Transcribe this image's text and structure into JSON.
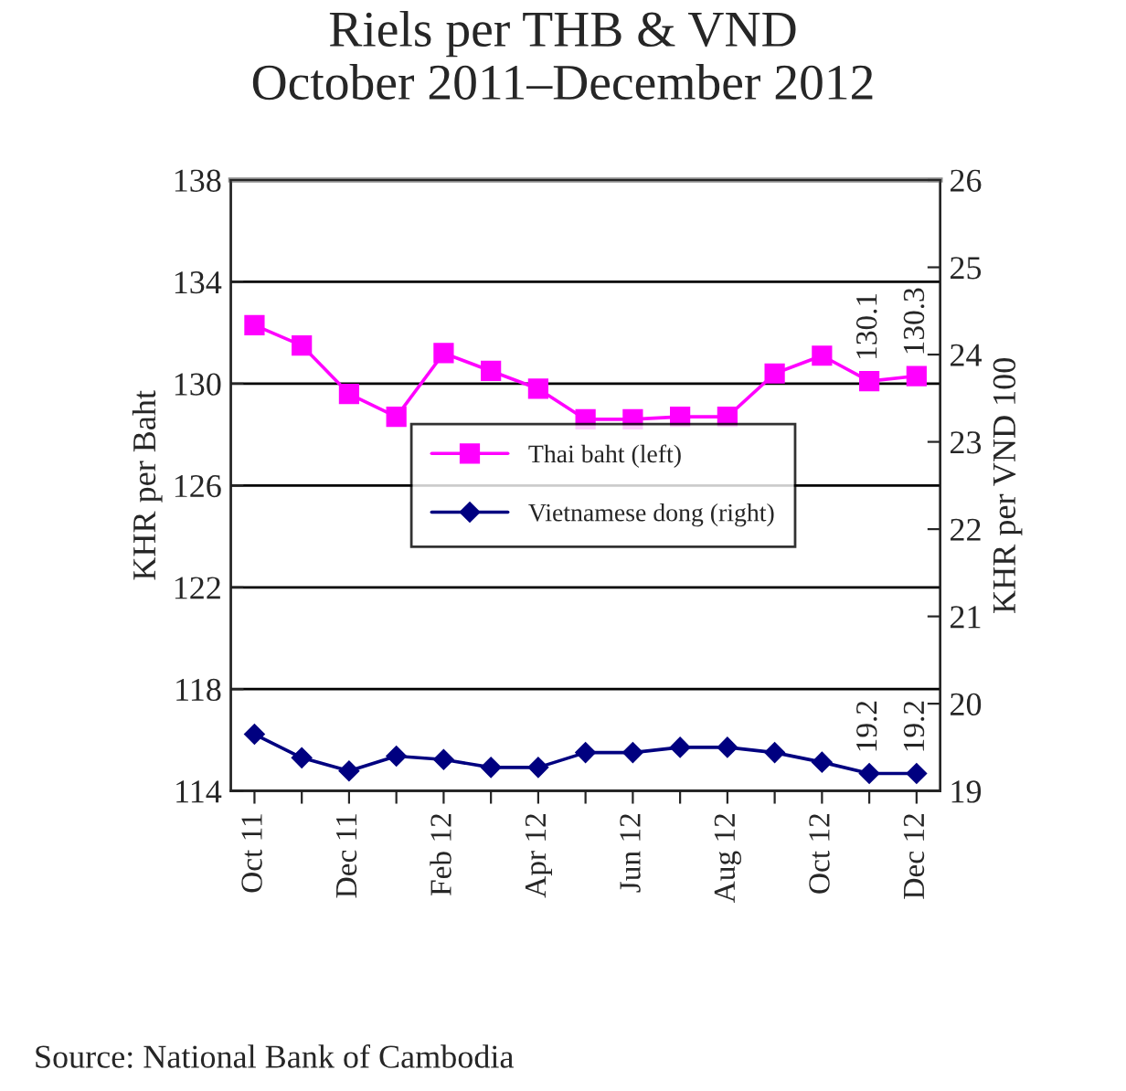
{
  "chart_data": {
    "type": "line",
    "title": "Riels per THB & VND\nOctober 2011–December 2012",
    "ylabel": "KHR per Baht",
    "y2label": "KHR per VND 100",
    "categories": [
      "Oct 11",
      null,
      "Dec 11",
      null,
      "Feb 12",
      null,
      "Apr 12",
      null,
      "Jun 12",
      null,
      "Aug 12",
      null,
      "Oct 12",
      null,
      "Dec 12"
    ],
    "series": [
      {
        "name": "Thai baht (left)",
        "color": "#ff00ff",
        "marker": "square",
        "values": [
          132.3,
          131.5,
          129.6,
          128.7,
          131.2,
          130.5,
          129.8,
          128.6,
          128.6,
          128.7,
          128.7,
          130.4,
          131.1,
          130.1,
          130.3
        ],
        "value_labels": [
          null,
          null,
          null,
          null,
          null,
          null,
          null,
          null,
          null,
          null,
          null,
          null,
          null,
          "130.1",
          "130.3"
        ]
      },
      {
        "name": "Vietnamese dong (right)",
        "color": "#000080",
        "marker": "diamond",
        "axis": "y2",
        "values": [
          19.65,
          19.38,
          19.23,
          19.4,
          19.36,
          19.27,
          19.27,
          19.44,
          19.44,
          19.5,
          19.5,
          19.44,
          19.33,
          19.2,
          19.2
        ],
        "value_labels": [
          null,
          null,
          null,
          null,
          null,
          null,
          null,
          null,
          null,
          null,
          null,
          null,
          null,
          "19.2",
          "19.2"
        ]
      }
    ],
    "ylim": [
      114,
      138
    ],
    "yticks": [
      114,
      118,
      122,
      126,
      130,
      134,
      138
    ],
    "y2lim": [
      19,
      26
    ],
    "y2ticks": [
      19,
      20,
      21,
      22,
      23,
      24,
      25,
      26
    ],
    "grid": "y",
    "legend": "center",
    "annotations": [
      "Source: National Bank of Cambodia"
    ]
  }
}
